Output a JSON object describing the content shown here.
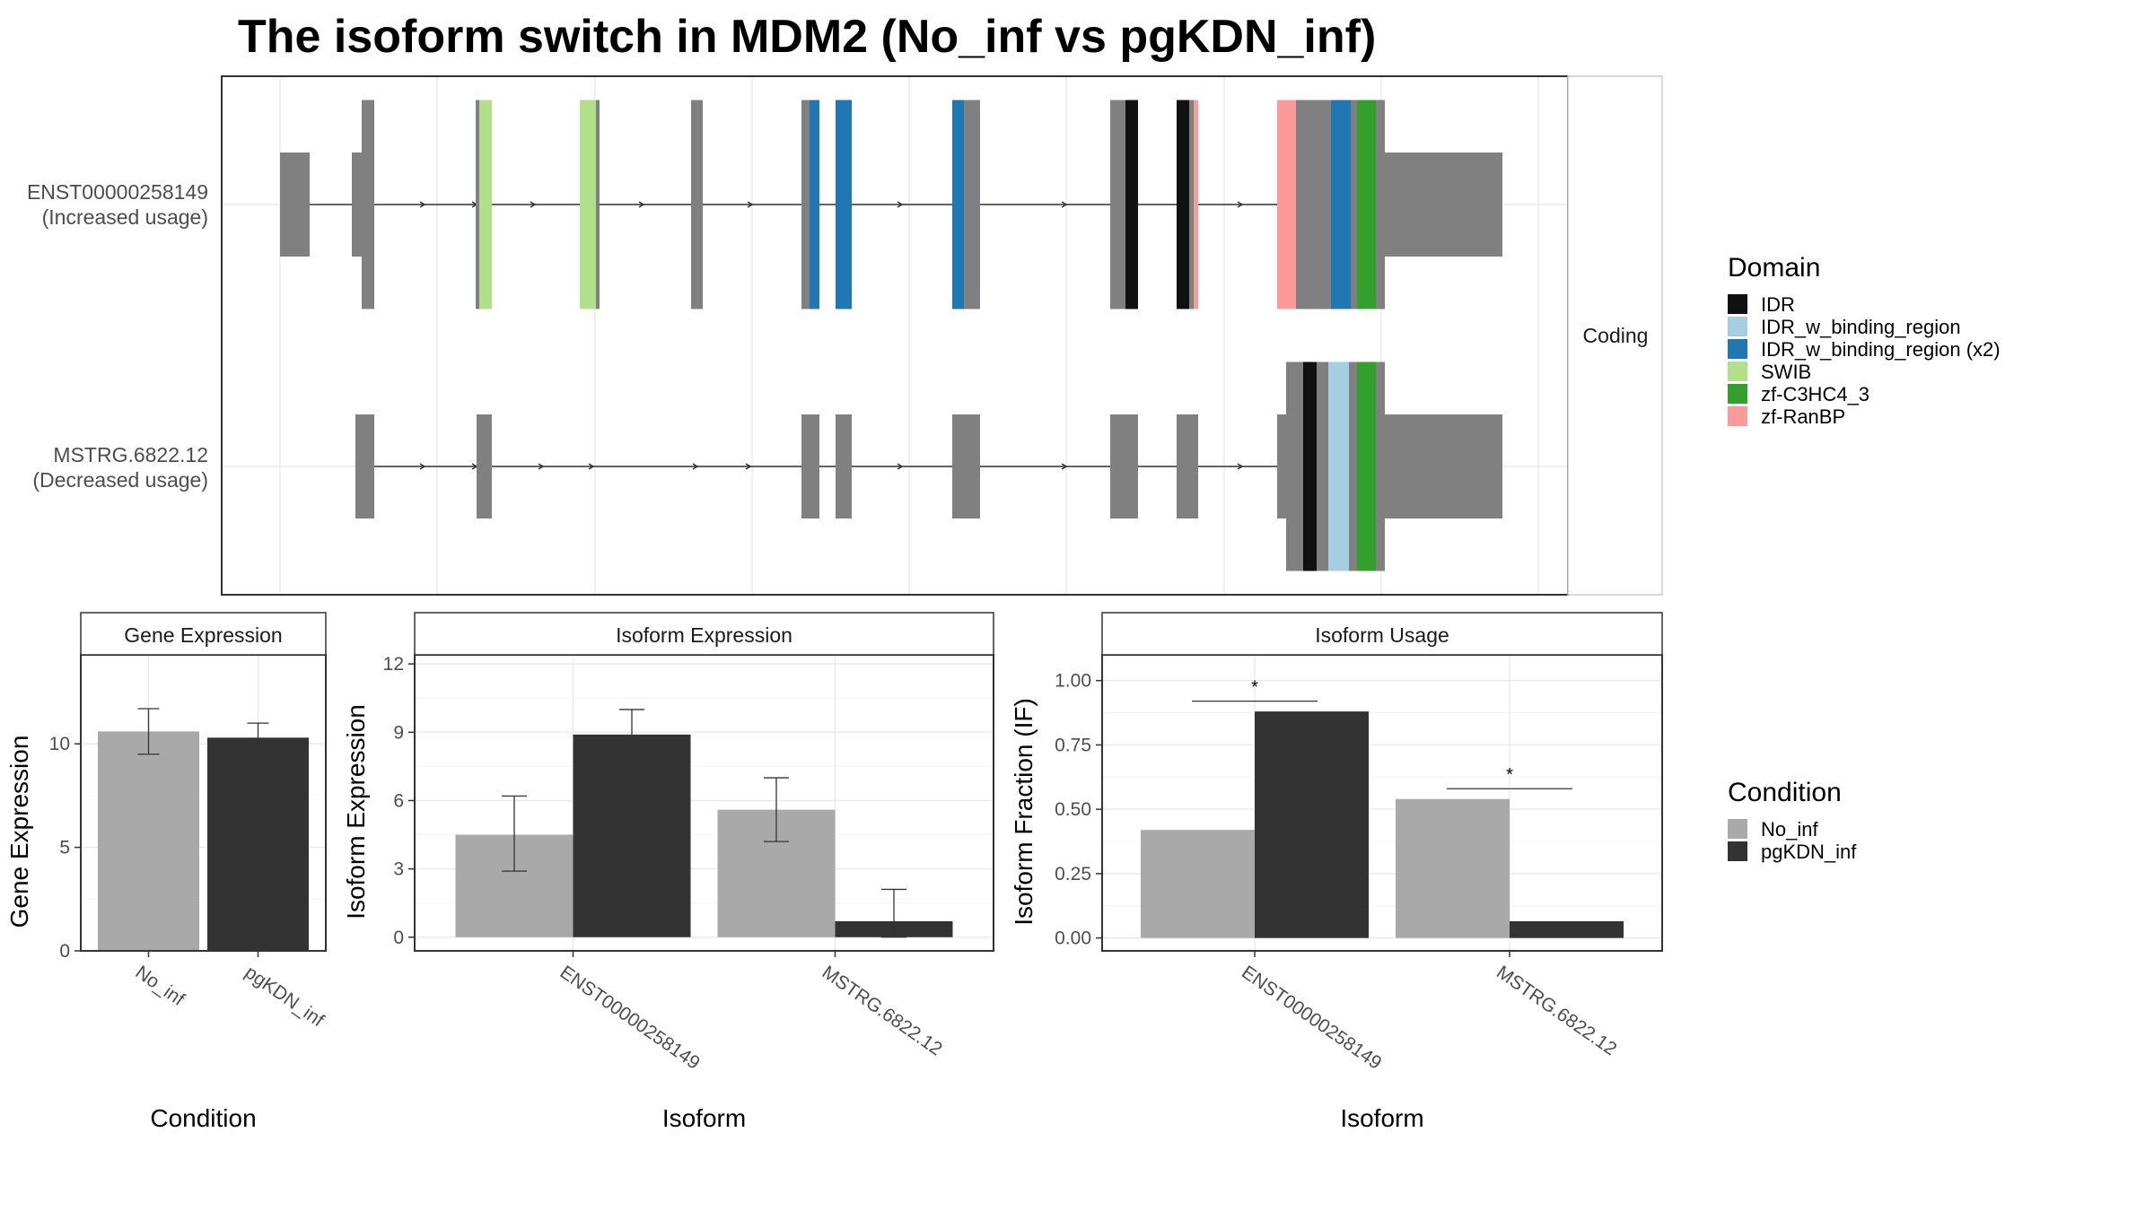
{
  "title": "The isoform switch in MDM2 (No_inf vs pgKDN_inf)",
  "colors": {
    "no_inf": "#a9a9a9",
    "pgkdn_inf": "#333333",
    "exon": "#808080",
    "IDR": "#111111",
    "IDR_w_binding_region": "#a6cee3",
    "IDR_w_binding_region_x2": "#1f78b4",
    "SWIB": "#b2df8a",
    "zf_C3HC4_3": "#33a02c",
    "zf_RanBP": "#fb9a99"
  },
  "structure": {
    "facet_label": "Coding",
    "transcripts": [
      {
        "id": "ENST00000258149",
        "usage": "(Increased usage)"
      },
      {
        "id": "MSTRG.6822.12",
        "usage": "(Decreased usage)"
      }
    ]
  },
  "legend_domain": {
    "title": "Domain",
    "items": [
      {
        "label": "IDR",
        "color": "#111111"
      },
      {
        "label": "IDR_w_binding_region",
        "color": "#a6cee3"
      },
      {
        "label": "IDR_w_binding_region (x2)",
        "color": "#1f78b4"
      },
      {
        "label": "SWIB",
        "color": "#b2df8a"
      },
      {
        "label": "zf-C3HC4_3",
        "color": "#33a02c"
      },
      {
        "label": "zf-RanBP",
        "color": "#fb9a99"
      }
    ]
  },
  "legend_condition": {
    "title": "Condition",
    "items": [
      {
        "label": "No_inf",
        "color": "#a9a9a9"
      },
      {
        "label": "pgKDN_inf",
        "color": "#333333"
      }
    ]
  },
  "chart_data": [
    {
      "type": "bar",
      "title": "Gene Expression",
      "xlabel": "Condition",
      "ylabel": "Gene Expression",
      "categories": [
        "No_inf",
        "pgKDN_inf"
      ],
      "values": [
        10.6,
        10.3
      ],
      "error_low": [
        9.5,
        9.6
      ],
      "error_high": [
        11.7,
        11.0
      ],
      "yticks": [
        0,
        5,
        10
      ],
      "ylim": [
        0,
        14.3
      ]
    },
    {
      "type": "bar",
      "title": "Isoform Expression",
      "xlabel": "Isoform",
      "ylabel": "Isoform Expression",
      "categories": [
        "ENST00000258149",
        "MSTRG.6822.12"
      ],
      "series": [
        {
          "name": "No_inf",
          "values": [
            4.5,
            5.6
          ],
          "error_low": [
            2.9,
            4.2
          ],
          "error_high": [
            6.2,
            7.0
          ]
        },
        {
          "name": "pgKDN_inf",
          "values": [
            8.9,
            0.7
          ],
          "error_low": [
            7.8,
            0.0
          ],
          "error_high": [
            10.0,
            2.1
          ]
        }
      ],
      "yticks": [
        0,
        3,
        6,
        9,
        12
      ],
      "ylim": [
        -0.6,
        12.4
      ]
    },
    {
      "type": "bar",
      "title": "Isoform Usage",
      "xlabel": "Isoform",
      "ylabel": "Isoform Fraction (IF)",
      "categories": [
        "ENST00000258149",
        "MSTRG.6822.12"
      ],
      "series": [
        {
          "name": "No_inf",
          "values": [
            0.42,
            0.54
          ]
        },
        {
          "name": "pgKDN_inf",
          "values": [
            0.88,
            0.065
          ]
        }
      ],
      "significance": [
        {
          "label": "*",
          "y": 0.92
        },
        {
          "label": "*",
          "y": 0.58
        }
      ],
      "yticks": [
        "0.00",
        "0.25",
        "0.50",
        "0.75",
        "1.00"
      ],
      "ylim": [
        -0.05,
        1.1
      ]
    }
  ]
}
